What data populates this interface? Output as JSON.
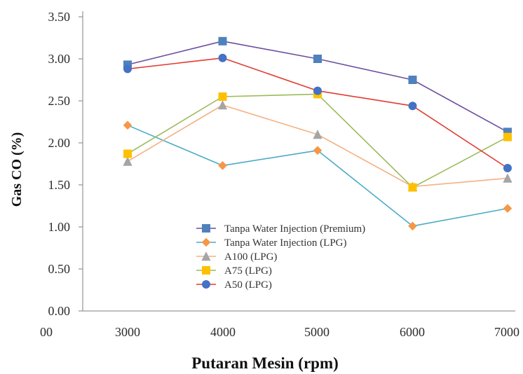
{
  "chart_data": {
    "type": "line",
    "title": "",
    "xlabel": "Putaran Mesin (rpm)",
    "ylabel": "Gas CO (%)",
    "x": [
      3000,
      4000,
      5000,
      6000,
      7000
    ],
    "x_ticks": [
      "00",
      "3000",
      "4000",
      "5000",
      "6000",
      "7000"
    ],
    "y_ticks": [
      "0.00",
      "0.50",
      "1.00",
      "1.50",
      "2.00",
      "2.50",
      "3.00",
      "3.50"
    ],
    "ylim": [
      0,
      3.5
    ],
    "grid": false,
    "legend_position": "bottom-center",
    "series": [
      {
        "name": "Tanpa Water Injection (Premium)",
        "values": [
          2.93,
          3.21,
          3.0,
          2.75,
          2.13
        ],
        "color": "#4f81bd",
        "line_color": "#6b4fa0",
        "marker": "square"
      },
      {
        "name": "Tanpa Water Injection (LPG)",
        "values": [
          2.21,
          1.73,
          1.91,
          1.01,
          1.22
        ],
        "color": "#f79646",
        "line_color": "#4aacc6",
        "marker": "diamond"
      },
      {
        "name": "A100 (LPG)",
        "values": [
          1.78,
          2.45,
          2.1,
          1.48,
          1.58
        ],
        "color": "#a5a5a5",
        "line_color": "#f4b183",
        "marker": "triangle"
      },
      {
        "name": "A75 (LPG)",
        "values": [
          1.87,
          2.55,
          2.58,
          1.47,
          2.07
        ],
        "color": "#ffc000",
        "line_color": "#9bbb59",
        "marker": "square"
      },
      {
        "name": "A50 (LPG)",
        "values": [
          2.88,
          3.01,
          2.62,
          2.44,
          1.7
        ],
        "color": "#4472c4",
        "line_color": "#e03c31",
        "marker": "circle"
      }
    ]
  }
}
